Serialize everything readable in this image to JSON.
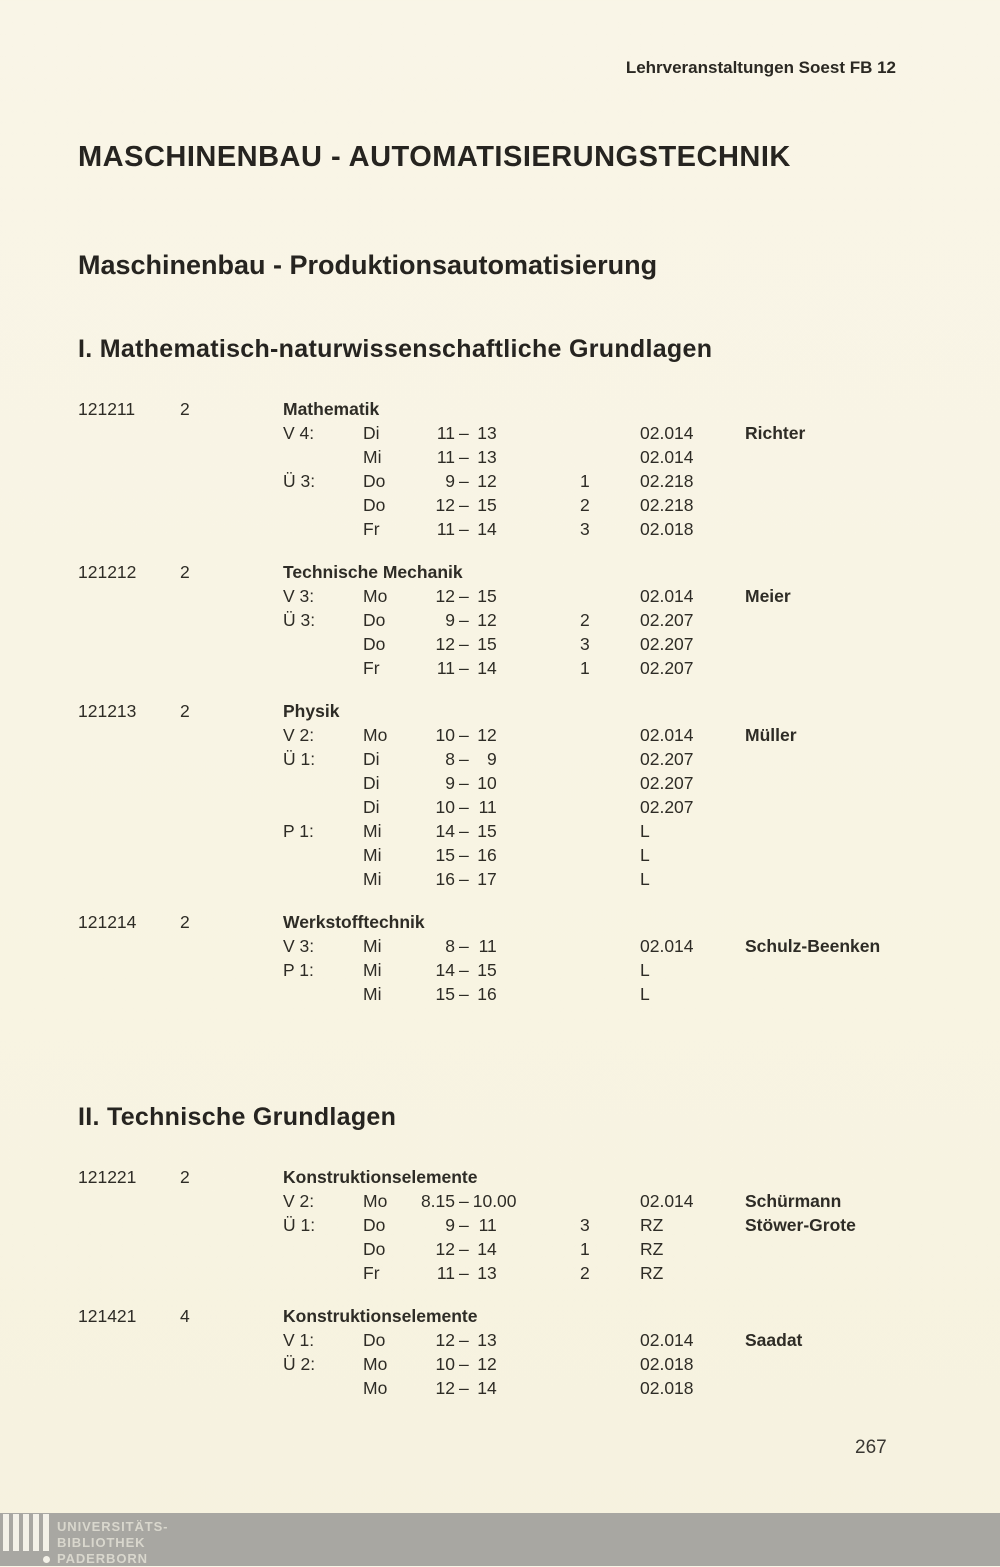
{
  "page": {
    "header_right": "Lehrveranstaltungen Soest FB 12",
    "title": "MASCHINENBAU - AUTOMATISIERUNGSTECHNIK",
    "subtitle": "Maschinenbau - Produktionsautomatisierung",
    "page_number": "267"
  },
  "glyphs": {
    "time_dash": "–"
  },
  "sections": [
    {
      "heading": "I. Mathematisch-naturwissenschaftliche Grundlagen",
      "courses": [
        {
          "id": "121211",
          "hours": "2",
          "name": "Mathematik",
          "rows": [
            {
              "type": "V 4:",
              "day": "Di",
              "ts": "11",
              "te": "13",
              "room": "02.014",
              "lect": "Richter"
            },
            {
              "type": "",
              "day": "Mi",
              "ts": "11",
              "te": "13",
              "room": "02.014"
            },
            {
              "type": "Ü 3:",
              "day": "Do",
              "ts": "9",
              "te": "12",
              "grp": "1",
              "room": "02.218"
            },
            {
              "type": "",
              "day": "Do",
              "ts": "12",
              "te": "15",
              "grp": "2",
              "room": "02.218"
            },
            {
              "type": "",
              "day": "Fr",
              "ts": "11",
              "te": "14",
              "grp": "3",
              "room": "02.018"
            }
          ]
        },
        {
          "id": "121212",
          "hours": "2",
          "name": "Technische Mechanik",
          "rows": [
            {
              "type": "V 3:",
              "day": "Mo",
              "ts": "12",
              "te": "15",
              "room": "02.014",
              "lect": "Meier"
            },
            {
              "type": "Ü 3:",
              "day": "Do",
              "ts": "9",
              "te": "12",
              "grp": "2",
              "room": "02.207"
            },
            {
              "type": "",
              "day": "Do",
              "ts": "12",
              "te": "15",
              "grp": "3",
              "room": "02.207"
            },
            {
              "type": "",
              "day": "Fr",
              "ts": "11",
              "te": "14",
              "grp": "1",
              "room": "02.207"
            }
          ]
        },
        {
          "id": "121213",
          "hours": "2",
          "name": "Physik",
          "rows": [
            {
              "type": "V 2:",
              "day": "Mo",
              "ts": "10",
              "te": "12",
              "room": "02.014",
              "lect": "Müller"
            },
            {
              "type": "Ü 1:",
              "day": "Di",
              "ts": "8",
              "te": "9",
              "room": "02.207"
            },
            {
              "type": "",
              "day": "Di",
              "ts": "9",
              "te": "10",
              "room": "02.207"
            },
            {
              "type": "",
              "day": "Di",
              "ts": "10",
              "te": "11",
              "room": "02.207"
            },
            {
              "type": "P 1:",
              "day": "Mi",
              "ts": "14",
              "te": "15",
              "room": "L"
            },
            {
              "type": "",
              "day": "Mi",
              "ts": "15",
              "te": "16",
              "room": "L"
            },
            {
              "type": "",
              "day": "Mi",
              "ts": "16",
              "te": "17",
              "room": "L"
            }
          ]
        },
        {
          "id": "121214",
          "hours": "2",
          "name": "Werkstofftechnik",
          "rows": [
            {
              "type": "V 3:",
              "day": "Mi",
              "ts": "8",
              "te": "11",
              "room": "02.014",
              "lect": "Schulz-Beenken"
            },
            {
              "type": "P 1:",
              "day": "Mi",
              "ts": "14",
              "te": "15",
              "room": "L"
            },
            {
              "type": "",
              "day": "Mi",
              "ts": "15",
              "te": "16",
              "room": "L"
            }
          ]
        }
      ]
    },
    {
      "heading": "II. Technische Grundlagen",
      "courses": [
        {
          "id": "121221",
          "hours": "2",
          "name": "Konstruktionselemente",
          "rows": [
            {
              "type": "V 2:",
              "day": "Mo",
              "ts": "8.15",
              "te": "10.00",
              "room": "02.014",
              "lect": "Schürmann"
            },
            {
              "type": "Ü 1:",
              "day": "Do",
              "ts": "9",
              "te": "11",
              "grp": "3",
              "room": "RZ",
              "lect": "Stöwer-Grote"
            },
            {
              "type": "",
              "day": "Do",
              "ts": "12",
              "te": "14",
              "grp": "1",
              "room": "RZ"
            },
            {
              "type": "",
              "day": "Fr",
              "ts": "11",
              "te": "13",
              "grp": "2",
              "room": "RZ"
            }
          ]
        },
        {
          "id": "121421",
          "hours": "4",
          "name": "Konstruktionselemente",
          "rows": [
            {
              "type": "V 1:",
              "day": "Do",
              "ts": "12",
              "te": "13",
              "room": "02.014",
              "lect": "Saadat"
            },
            {
              "type": "Ü 2:",
              "day": "Mo",
              "ts": "10",
              "te": "12",
              "room": "02.018"
            },
            {
              "type": "",
              "day": "Mo",
              "ts": "12",
              "te": "14",
              "room": "02.018"
            }
          ]
        }
      ]
    }
  ],
  "watermark": {
    "line1": "UNIVERSITÄTS-",
    "line2": "BIBLIOTHEK",
    "line3": "PADERBORN"
  }
}
